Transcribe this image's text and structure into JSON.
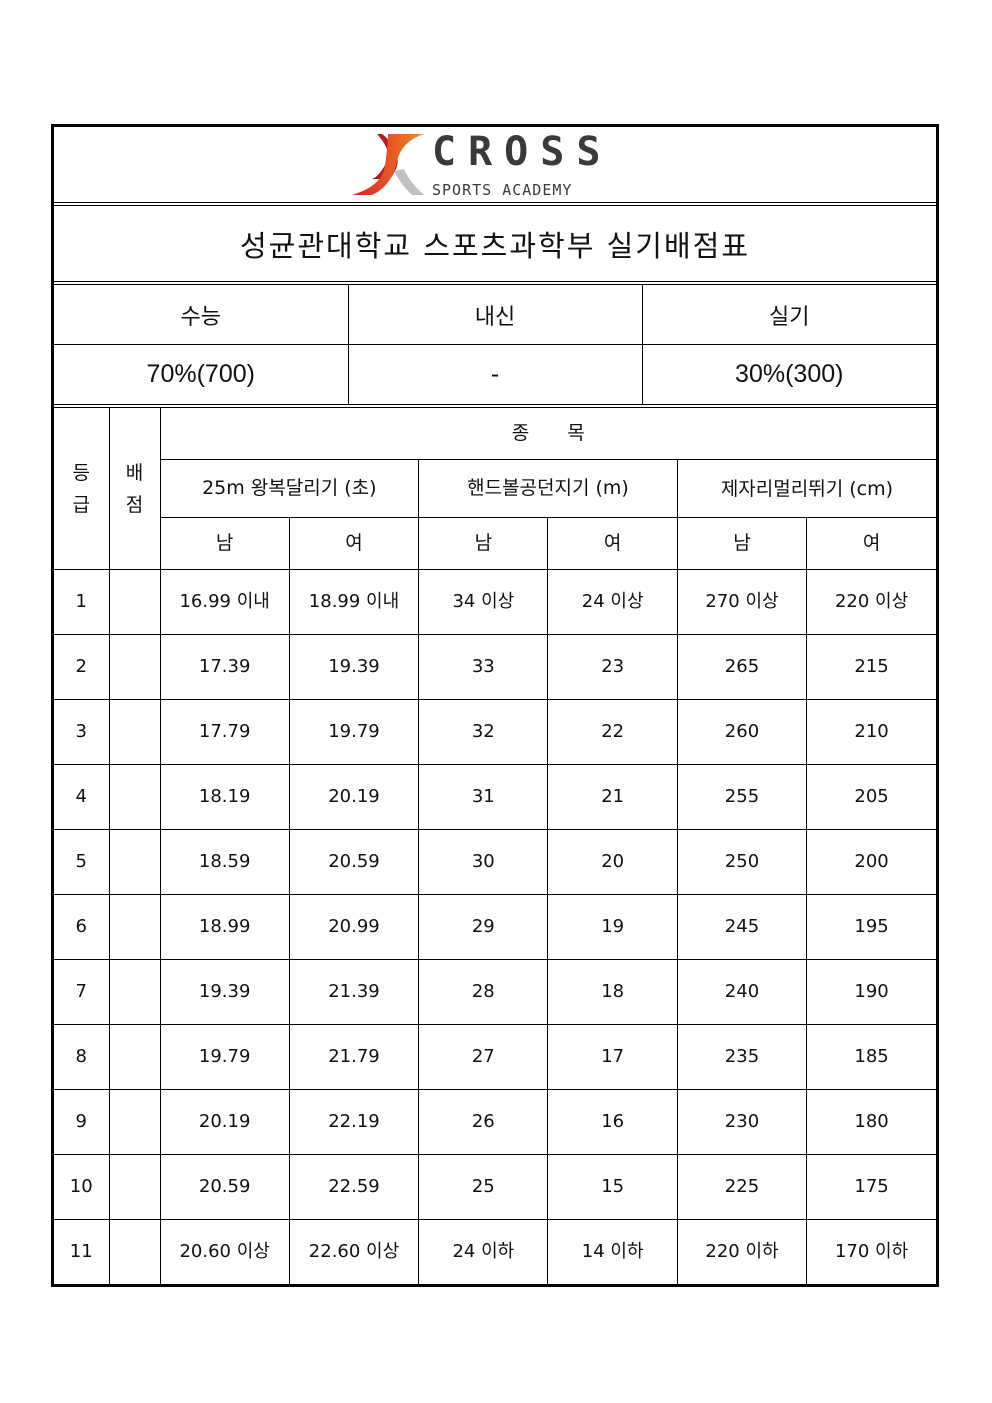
{
  "logo": {
    "text": "CROSS",
    "subtext": "SPORTS ACADEMY",
    "colors": {
      "red": "#d4202a",
      "orange": "#f28a1e",
      "gray": "#c0c0c0",
      "dark": "#3a3a3a"
    }
  },
  "title": "성균관대학교 스포츠과학부 실기배점표",
  "summary": {
    "headers": [
      "수능",
      "내신",
      "실기"
    ],
    "values": [
      "70%(700)",
      "-",
      "30%(300)"
    ]
  },
  "table": {
    "grade_header": "등급",
    "grade_header_chars": [
      "등",
      "급"
    ],
    "score_header_chars": [
      "배",
      "점"
    ],
    "events_header": "종　　목",
    "events": [
      "25m 왕복달리기 (초)",
      "핸드볼공던지기 (m)",
      "제자리멀리뛰기 (cm)"
    ],
    "genders": [
      "남",
      "여",
      "남",
      "여",
      "남",
      "여"
    ],
    "rows": [
      {
        "grade": "1",
        "score": "",
        "cells": [
          "16.99 이내",
          "18.99 이내",
          "34 이상",
          "24 이상",
          "270 이상",
          "220 이상"
        ]
      },
      {
        "grade": "2",
        "score": "",
        "cells": [
          "17.39",
          "19.39",
          "33",
          "23",
          "265",
          "215"
        ]
      },
      {
        "grade": "3",
        "score": "",
        "cells": [
          "17.79",
          "19.79",
          "32",
          "22",
          "260",
          "210"
        ]
      },
      {
        "grade": "4",
        "score": "",
        "cells": [
          "18.19",
          "20.19",
          "31",
          "21",
          "255",
          "205"
        ]
      },
      {
        "grade": "5",
        "score": "",
        "cells": [
          "18.59",
          "20.59",
          "30",
          "20",
          "250",
          "200"
        ]
      },
      {
        "grade": "6",
        "score": "",
        "cells": [
          "18.99",
          "20.99",
          "29",
          "19",
          "245",
          "195"
        ]
      },
      {
        "grade": "7",
        "score": "",
        "cells": [
          "19.39",
          "21.39",
          "28",
          "18",
          "240",
          "190"
        ]
      },
      {
        "grade": "8",
        "score": "",
        "cells": [
          "19.79",
          "21.79",
          "27",
          "17",
          "235",
          "185"
        ]
      },
      {
        "grade": "9",
        "score": "",
        "cells": [
          "20.19",
          "22.19",
          "26",
          "16",
          "230",
          "180"
        ]
      },
      {
        "grade": "10",
        "score": "",
        "cells": [
          "20.59",
          "22.59",
          "25",
          "15",
          "225",
          "175"
        ]
      },
      {
        "grade": "11",
        "score": "",
        "cells": [
          "20.60 이상",
          "22.60 이상",
          "24 이하",
          "14 이하",
          "220 이하",
          "170 이하"
        ]
      }
    ]
  }
}
